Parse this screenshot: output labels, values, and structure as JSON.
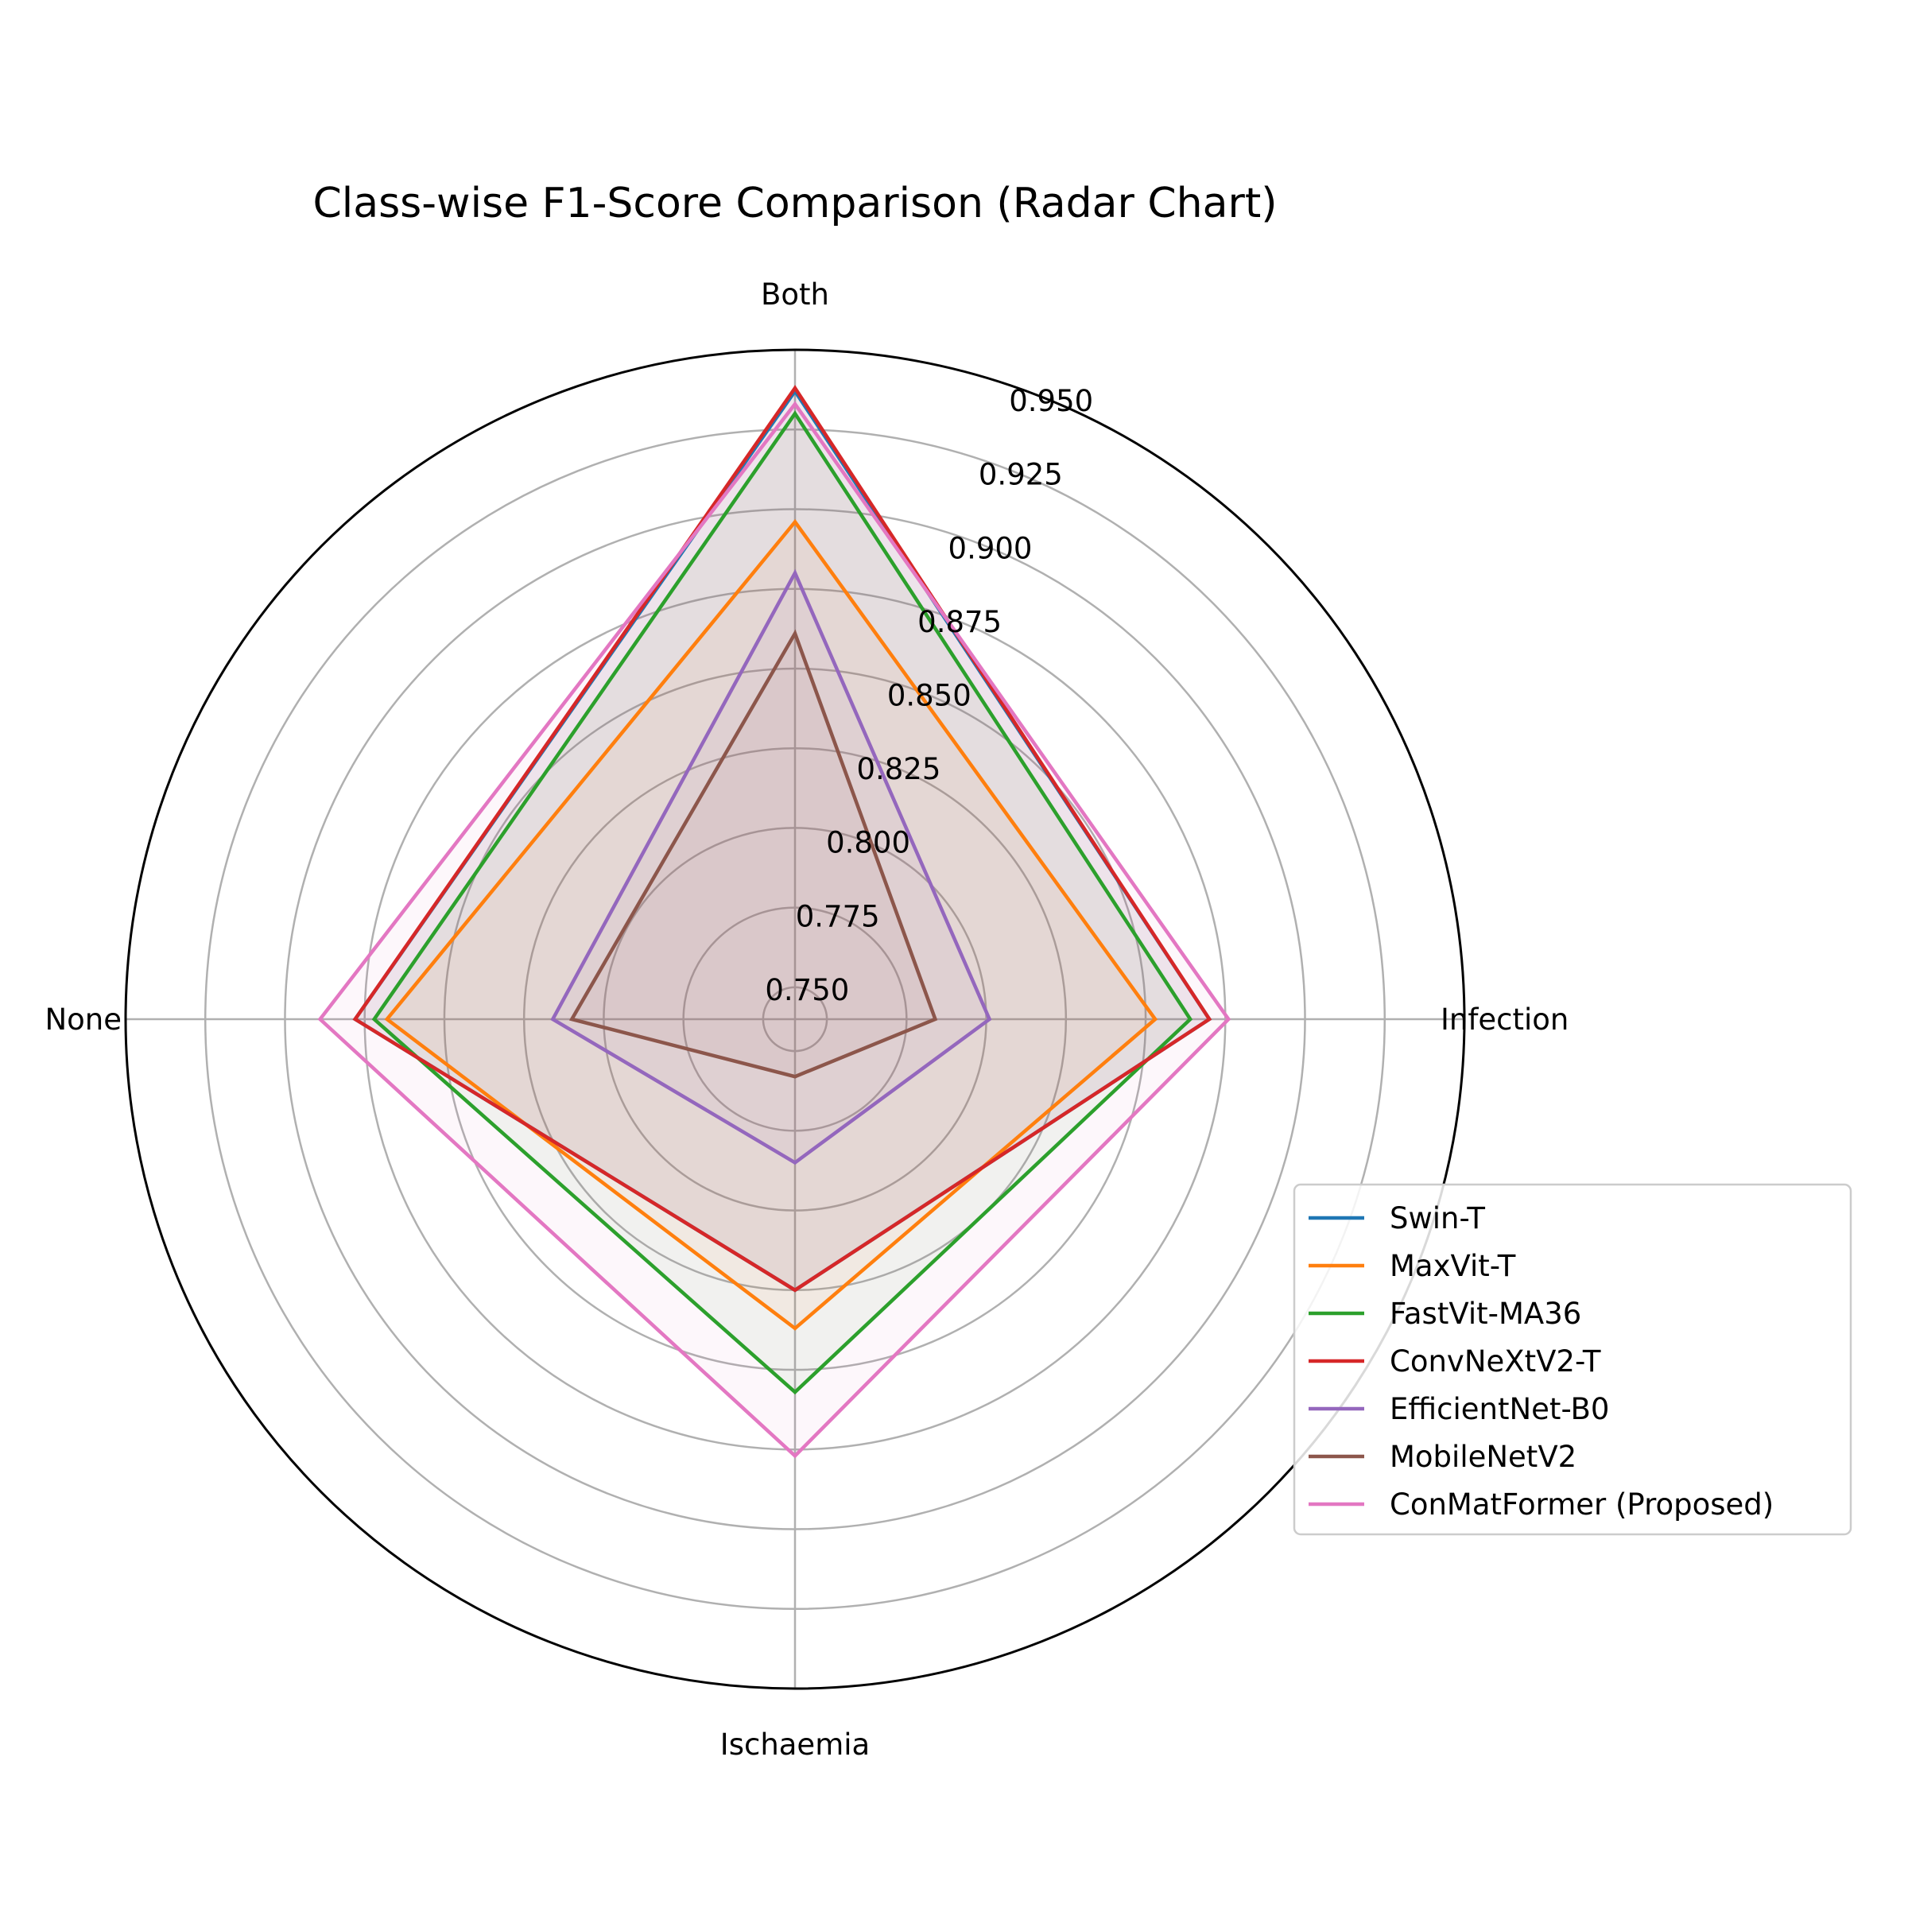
{
  "chart_data": {
    "type": "radar",
    "title": "Class-wise F1-Score Comparison (Radar Chart)",
    "categories": [
      "Both",
      "Infection",
      "Ischaemia",
      "None"
    ],
    "rlim": [
      0.74,
      0.95
    ],
    "rticks": [
      "0.750",
      "0.775",
      "0.800",
      "0.825",
      "0.850",
      "0.875",
      "0.900",
      "0.925",
      "0.950"
    ],
    "rtick_values": [
      0.75,
      0.775,
      0.8,
      0.825,
      0.85,
      0.875,
      0.9,
      0.925,
      0.95
    ],
    "grid": true,
    "legend_position": "lower-right",
    "series": [
      {
        "name": "Swin-T",
        "color": "#1f77b4",
        "values": [
          0.937,
          0.87,
          0.825,
          0.878
        ]
      },
      {
        "name": "MaxVit-T",
        "color": "#ff7f0e",
        "values": [
          0.896,
          0.853,
          0.837,
          0.868
        ]
      },
      {
        "name": "FastVit-MA36",
        "color": "#2ca02c",
        "values": [
          0.93,
          0.864,
          0.857,
          0.872
        ]
      },
      {
        "name": "ConvNeXtV2-T",
        "color": "#d62728",
        "values": [
          0.938,
          0.87,
          0.825,
          0.878
        ]
      },
      {
        "name": "EfficientNet-B0",
        "color": "#9467bd",
        "values": [
          0.88,
          0.801,
          0.785,
          0.816
        ]
      },
      {
        "name": "MobileNetV2",
        "color": "#8c564b",
        "values": [
          0.861,
          0.784,
          0.758,
          0.81
        ]
      },
      {
        "name": "ConMatFormer (Proposed)",
        "color": "#e377c2",
        "values": [
          0.933,
          0.876,
          0.877,
          0.889
        ]
      }
    ]
  }
}
